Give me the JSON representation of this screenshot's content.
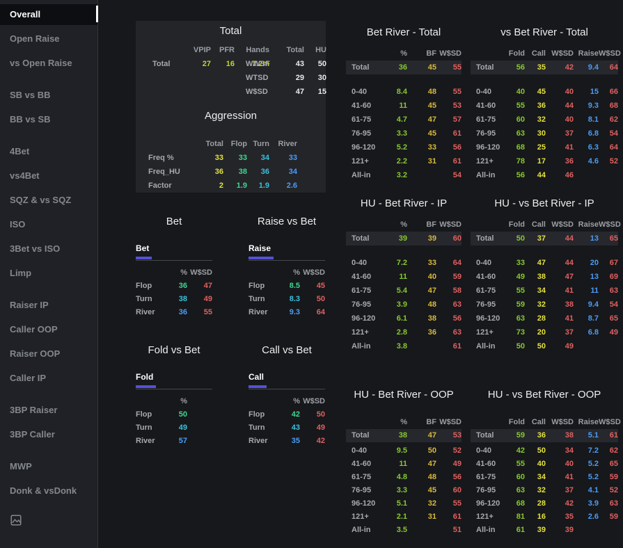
{
  "sidebar": {
    "groups": [
      {
        "items": [
          {
            "label": "Overall",
            "active": true
          },
          {
            "label": "Open Raise"
          },
          {
            "label": "vs Open Raise"
          }
        ]
      },
      {
        "items": [
          {
            "label": "SB vs BB"
          },
          {
            "label": "BB vs SB"
          }
        ]
      },
      {
        "items": [
          {
            "label": "4Bet"
          },
          {
            "label": "vs4Bet"
          },
          {
            "label": "SQZ & vs SQZ"
          },
          {
            "label": "ISO"
          },
          {
            "label": "3Bet vs ISO"
          },
          {
            "label": "Limp"
          }
        ]
      },
      {
        "items": [
          {
            "label": "Raiser IP"
          },
          {
            "label": "Caller OOP"
          },
          {
            "label": "Raiser OOP"
          },
          {
            "label": "Caller IP"
          }
        ]
      },
      {
        "items": [
          {
            "label": "3BP Raiser"
          },
          {
            "label": "3BP Caller"
          }
        ]
      },
      {
        "items": [
          {
            "label": "MWP"
          },
          {
            "label": "Donk & vsDonk"
          }
        ]
      }
    ],
    "footer_icon": "image-icon"
  },
  "colors": {
    "lime": "#c2d42e",
    "yellow": "#e4e23e",
    "mint": "#3fd78f",
    "cyan": "#38c2dd",
    "blue": "#4b9cf7",
    "green": "#86c92f",
    "amber": "#d9b93a",
    "red": "#e06060",
    "white": "#e9eaeb",
    "accent_underline": "#5351d8"
  },
  "overview": {
    "total": {
      "title": "Total",
      "left": {
        "headers": [
          "VPIP",
          "PFR",
          "Hands"
        ],
        "row_label": "Total",
        "values": [
          "27",
          "16",
          "7.2m"
        ]
      },
      "right": {
        "headers": [
          "Total",
          "HU"
        ],
        "rows": [
          {
            "label": "WWSF",
            "values": [
              "43",
              "50"
            ]
          },
          {
            "label": "WTSD",
            "values": [
              "29",
              "30"
            ]
          },
          {
            "label": "W$SD",
            "values": [
              "47",
              "15"
            ]
          }
        ]
      }
    },
    "aggression": {
      "title": "Aggression",
      "headers": [
        "Total",
        "Flop",
        "Turn",
        "River"
      ],
      "rows": [
        {
          "label": "Freq %",
          "values": [
            "33",
            "33",
            "34",
            "33"
          ]
        },
        {
          "label": "Freq_HU",
          "values": [
            "36",
            "38",
            "36",
            "34"
          ]
        },
        {
          "label": "Factor",
          "values": [
            "2",
            "1.9",
            "1.9",
            "2.6"
          ]
        }
      ]
    }
  },
  "street_panels": [
    {
      "title": "Bet",
      "tab": "Bet",
      "headers": [
        "%",
        "W$SD"
      ],
      "rows": [
        {
          "label": "Flop",
          "values": [
            "36",
            "47"
          ]
        },
        {
          "label": "Turn",
          "values": [
            "38",
            "49"
          ]
        },
        {
          "label": "River",
          "values": [
            "36",
            "55"
          ]
        }
      ]
    },
    {
      "title": "Raise vs Bet",
      "tab": "Raise",
      "headers": [
        "%",
        "W$SD"
      ],
      "rows": [
        {
          "label": "Flop",
          "values": [
            "8.5",
            "45"
          ]
        },
        {
          "label": "Turn",
          "values": [
            "8.3",
            "50"
          ]
        },
        {
          "label": "River",
          "values": [
            "9.3",
            "64"
          ]
        }
      ]
    },
    {
      "title": "Fold vs Bet",
      "tab": "Fold",
      "headers": [
        "%"
      ],
      "rows": [
        {
          "label": "Flop",
          "values": [
            "50"
          ]
        },
        {
          "label": "Turn",
          "values": [
            "49"
          ]
        },
        {
          "label": "River",
          "values": [
            "57"
          ]
        }
      ]
    },
    {
      "title": "Call vs Bet",
      "tab": "Call",
      "headers": [
        "%",
        "W$SD"
      ],
      "rows": [
        {
          "label": "Flop",
          "values": [
            "42",
            "50"
          ]
        },
        {
          "label": "Turn",
          "values": [
            "43",
            "49"
          ]
        },
        {
          "label": "River",
          "values": [
            "35",
            "42"
          ]
        }
      ]
    }
  ],
  "river_panels": [
    {
      "title": "Bet River - Total",
      "kind": "bet",
      "headers": [
        "%",
        "BF",
        "W$SD"
      ],
      "total": {
        "label": "Total",
        "values": [
          "36",
          "45",
          "55"
        ]
      },
      "rows": [
        {
          "label": "0-40",
          "values": [
            "8.4",
            "48",
            "55"
          ]
        },
        {
          "label": "41-60",
          "values": [
            "11",
            "45",
            "53"
          ]
        },
        {
          "label": "61-75",
          "values": [
            "4.7",
            "47",
            "57"
          ]
        },
        {
          "label": "76-95",
          "values": [
            "3.3",
            "45",
            "61"
          ]
        },
        {
          "label": "96-120",
          "values": [
            "5.2",
            "33",
            "56"
          ]
        },
        {
          "label": "121+",
          "values": [
            "2.2",
            "31",
            "61"
          ]
        },
        {
          "label": "All-in",
          "values": [
            "3.2",
            "",
            "54"
          ]
        }
      ]
    },
    {
      "title": "vs Bet River - Total",
      "kind": "vs",
      "headers": [
        "Fold",
        "Call",
        "W$SD",
        "Raise",
        "W$SD"
      ],
      "total": {
        "label": "Total",
        "values": [
          "56",
          "35",
          "42",
          "9.4",
          "64"
        ]
      },
      "rows": [
        {
          "label": "0-40",
          "values": [
            "40",
            "45",
            "40",
            "15",
            "66"
          ]
        },
        {
          "label": "41-60",
          "values": [
            "55",
            "36",
            "44",
            "9.3",
            "68"
          ]
        },
        {
          "label": "61-75",
          "values": [
            "60",
            "32",
            "40",
            "8.1",
            "62"
          ]
        },
        {
          "label": "76-95",
          "values": [
            "63",
            "30",
            "37",
            "6.8",
            "54"
          ]
        },
        {
          "label": "96-120",
          "values": [
            "68",
            "25",
            "41",
            "6.3",
            "64"
          ]
        },
        {
          "label": "121+",
          "values": [
            "78",
            "17",
            "36",
            "4.6",
            "52"
          ]
        },
        {
          "label": "All-in",
          "values": [
            "56",
            "44",
            "46",
            "",
            ""
          ]
        }
      ]
    },
    {
      "title": "HU - Bet River - IP",
      "kind": "bet",
      "headers": [
        "%",
        "BF",
        "W$SD"
      ],
      "total": {
        "label": "Total",
        "values": [
          "39",
          "39",
          "60"
        ]
      },
      "rows": [
        {
          "label": "0-40",
          "values": [
            "7.2",
            "33",
            "64"
          ]
        },
        {
          "label": "41-60",
          "values": [
            "11",
            "40",
            "59"
          ]
        },
        {
          "label": "61-75",
          "values": [
            "5.4",
            "47",
            "58"
          ]
        },
        {
          "label": "76-95",
          "values": [
            "3.9",
            "48",
            "63"
          ]
        },
        {
          "label": "96-120",
          "values": [
            "6.1",
            "38",
            "56"
          ]
        },
        {
          "label": "121+",
          "values": [
            "2.8",
            "36",
            "63"
          ]
        },
        {
          "label": "All-in",
          "values": [
            "3.8",
            "",
            "61"
          ]
        }
      ]
    },
    {
      "title": "HU - vs Bet River - IP",
      "kind": "vs",
      "headers": [
        "Fold",
        "Call",
        "W$SD",
        "Raise",
        "W$SD"
      ],
      "total": {
        "label": "Total",
        "values": [
          "50",
          "37",
          "44",
          "13",
          "65"
        ]
      },
      "rows": [
        {
          "label": "0-40",
          "values": [
            "33",
            "47",
            "44",
            "20",
            "67"
          ]
        },
        {
          "label": "41-60",
          "values": [
            "49",
            "38",
            "47",
            "13",
            "69"
          ]
        },
        {
          "label": "61-75",
          "values": [
            "55",
            "34",
            "41",
            "11",
            "63"
          ]
        },
        {
          "label": "76-95",
          "values": [
            "59",
            "32",
            "38",
            "9.4",
            "54"
          ]
        },
        {
          "label": "96-120",
          "values": [
            "63",
            "28",
            "41",
            "8.7",
            "65"
          ]
        },
        {
          "label": "121+",
          "values": [
            "73",
            "20",
            "37",
            "6.8",
            "49"
          ]
        },
        {
          "label": "All-in",
          "values": [
            "50",
            "50",
            "49",
            "",
            ""
          ]
        }
      ]
    },
    {
      "title": "HU - Bet River - OOP",
      "kind": "bet",
      "headers": [
        "%",
        "BF",
        "W$SD"
      ],
      "total": {
        "label": "Total",
        "values": [
          "38",
          "47",
          "53"
        ]
      },
      "rows": [
        {
          "label": "0-40",
          "values": [
            "9.5",
            "50",
            "52"
          ]
        },
        {
          "label": "41-60",
          "values": [
            "11",
            "47",
            "49"
          ]
        },
        {
          "label": "61-75",
          "values": [
            "4.8",
            "48",
            "56"
          ]
        },
        {
          "label": "76-95",
          "values": [
            "3.3",
            "45",
            "60"
          ]
        },
        {
          "label": "96-120",
          "values": [
            "5.1",
            "32",
            "55"
          ]
        },
        {
          "label": "121+",
          "values": [
            "2.1",
            "31",
            "61"
          ]
        },
        {
          "label": "All-in",
          "values": [
            "3.5",
            "",
            "51"
          ]
        }
      ]
    },
    {
      "title": "HU - vs Bet River - OOP",
      "kind": "vs",
      "headers": [
        "Fold",
        "Call",
        "W$SD",
        "Raise",
        "W$SD"
      ],
      "total": {
        "label": "Total",
        "values": [
          "59",
          "36",
          "38",
          "5.1",
          "61"
        ]
      },
      "rows": [
        {
          "label": "0-40",
          "values": [
            "42",
            "50",
            "34",
            "7.2",
            "62"
          ]
        },
        {
          "label": "41-60",
          "values": [
            "55",
            "40",
            "40",
            "5.2",
            "65"
          ]
        },
        {
          "label": "61-75",
          "values": [
            "60",
            "34",
            "41",
            "5.2",
            "59"
          ]
        },
        {
          "label": "76-95",
          "values": [
            "63",
            "32",
            "37",
            "4.1",
            "52"
          ]
        },
        {
          "label": "96-120",
          "values": [
            "68",
            "28",
            "42",
            "3.9",
            "63"
          ]
        },
        {
          "label": "121+",
          "values": [
            "81",
            "16",
            "35",
            "2.6",
            "59"
          ]
        },
        {
          "label": "All-in",
          "values": [
            "61",
            "39",
            "39",
            "",
            ""
          ]
        }
      ]
    }
  ]
}
